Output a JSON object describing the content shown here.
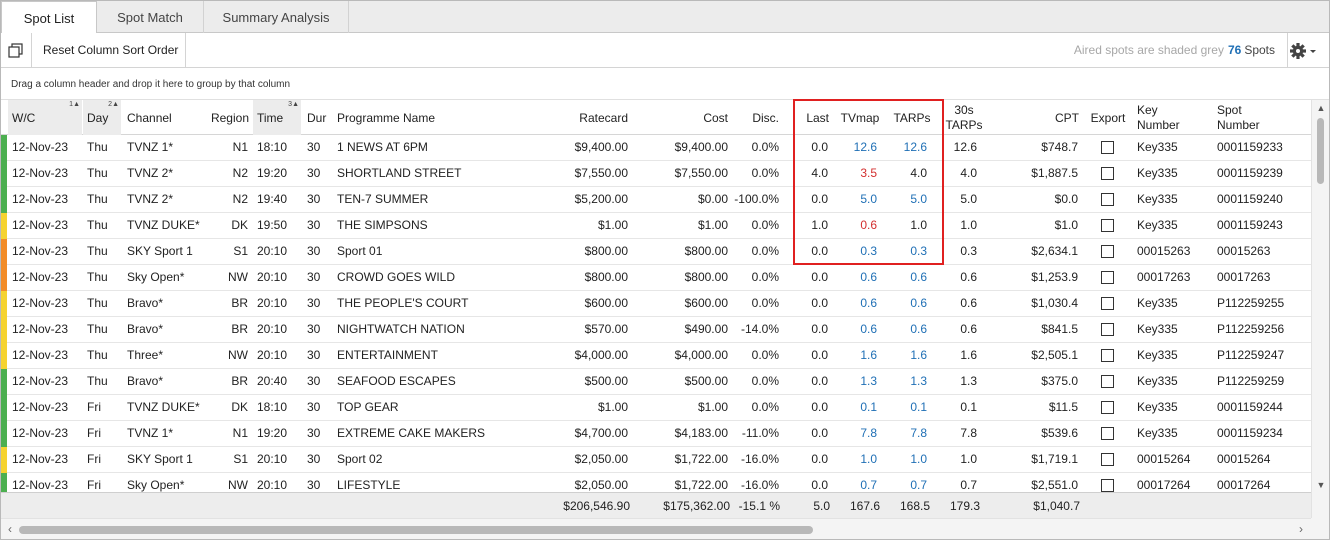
{
  "tabs": [
    {
      "label": "Spot List",
      "active": true
    },
    {
      "label": "Spot Match",
      "active": false
    },
    {
      "label": "Summary Analysis",
      "active": false
    }
  ],
  "toolbar": {
    "reset_label": "Reset Column Sort Order",
    "aired_note": "Aired spots are shaded grey",
    "spot_count": "76",
    "spots_label": "Spots"
  },
  "group_hint": "Drag a column header and drop it here to group by that column",
  "columns": {
    "wc": "W/C",
    "wc_sort": "1",
    "day": "Day",
    "day_sort": "2",
    "channel": "Channel",
    "region": "Region",
    "time": "Time",
    "time_sort": "3",
    "dur": "Dur",
    "programme": "Programme Name",
    "ratecard": "Ratecard",
    "cost": "Cost",
    "disc": "Disc.",
    "last": "Last",
    "tvmap": "TVmap",
    "tarps": "TARPs",
    "tarps30_l1": "30s",
    "tarps30_l2": "TARPs",
    "cpt": "CPT",
    "export": "Export",
    "key_l1": "Key",
    "key_l2": "Number",
    "spot_l1": "Spot",
    "spot_l2": "Number"
  },
  "status_colors": {
    "green": "#4caf50",
    "yellow": "#f5d330",
    "orange": "#f28c28"
  },
  "rows": [
    {
      "status": "green",
      "wc": "12-Nov-23",
      "day": "Thu",
      "channel": "TVNZ 1*",
      "region": "N1",
      "time": "18:10",
      "dur": "30",
      "programme": "1 NEWS AT 6PM",
      "ratecard": "$9,400.00",
      "cost": "$9,400.00",
      "disc": "0.0%",
      "last": "0.0",
      "tvmap": "12.6",
      "tvmap_color": "blue",
      "tarps": "12.6",
      "tarps_color": "blue",
      "tarps30": "12.6",
      "cpt": "$748.7",
      "key": "Key335",
      "spot": "0001159233"
    },
    {
      "status": "green",
      "wc": "12-Nov-23",
      "day": "Thu",
      "channel": "TVNZ 2*",
      "region": "N2",
      "time": "19:20",
      "dur": "30",
      "programme": "SHORTLAND STREET",
      "ratecard": "$7,550.00",
      "cost": "$7,550.00",
      "disc": "0.0%",
      "last": "4.0",
      "tvmap": "3.5",
      "tvmap_color": "red",
      "tarps": "4.0",
      "tarps_color": "plain",
      "tarps30": "4.0",
      "cpt": "$1,887.5",
      "key": "Key335",
      "spot": "0001159239"
    },
    {
      "status": "green",
      "wc": "12-Nov-23",
      "day": "Thu",
      "channel": "TVNZ 2*",
      "region": "N2",
      "time": "19:40",
      "dur": "30",
      "programme": "TEN-7 SUMMER",
      "ratecard": "$5,200.00",
      "cost": "$0.00",
      "disc": "-100.0%",
      "last": "0.0",
      "tvmap": "5.0",
      "tvmap_color": "blue",
      "tarps": "5.0",
      "tarps_color": "blue",
      "tarps30": "5.0",
      "cpt": "$0.0",
      "key": "Key335",
      "spot": "0001159240"
    },
    {
      "status": "yellow",
      "wc": "12-Nov-23",
      "day": "Thu",
      "channel": "TVNZ DUKE*",
      "region": "DK",
      "time": "19:50",
      "dur": "30",
      "programme": "THE SIMPSONS",
      "ratecard": "$1.00",
      "cost": "$1.00",
      "disc": "0.0%",
      "last": "1.0",
      "tvmap": "0.6",
      "tvmap_color": "red",
      "tarps": "1.0",
      "tarps_color": "plain",
      "tarps30": "1.0",
      "cpt": "$1.0",
      "key": "Key335",
      "spot": "0001159243"
    },
    {
      "status": "orange",
      "wc": "12-Nov-23",
      "day": "Thu",
      "channel": "SKY Sport 1",
      "region": "S1",
      "time": "20:10",
      "dur": "30",
      "programme": "Sport 01",
      "ratecard": "$800.00",
      "cost": "$800.00",
      "disc": "0.0%",
      "last": "0.0",
      "tvmap": "0.3",
      "tvmap_color": "blue",
      "tarps": "0.3",
      "tarps_color": "blue",
      "tarps30": "0.3",
      "cpt": "$2,634.1",
      "key": "00015263",
      "spot": "00015263"
    },
    {
      "status": "orange",
      "wc": "12-Nov-23",
      "day": "Thu",
      "channel": "Sky Open*",
      "region": "NW",
      "time": "20:10",
      "dur": "30",
      "programme": "CROWD GOES WILD",
      "ratecard": "$800.00",
      "cost": "$800.00",
      "disc": "0.0%",
      "last": "0.0",
      "tvmap": "0.6",
      "tvmap_color": "blue",
      "tarps": "0.6",
      "tarps_color": "blue",
      "tarps30": "0.6",
      "cpt": "$1,253.9",
      "key": "00017263",
      "spot": "00017263"
    },
    {
      "status": "yellow",
      "wc": "12-Nov-23",
      "day": "Thu",
      "channel": "Bravo*",
      "region": "BR",
      "time": "20:10",
      "dur": "30",
      "programme": "THE PEOPLE'S COURT",
      "ratecard": "$600.00",
      "cost": "$600.00",
      "disc": "0.0%",
      "last": "0.0",
      "tvmap": "0.6",
      "tvmap_color": "blue",
      "tarps": "0.6",
      "tarps_color": "blue",
      "tarps30": "0.6",
      "cpt": "$1,030.4",
      "key": "Key335",
      "spot": "P112259255"
    },
    {
      "status": "yellow",
      "wc": "12-Nov-23",
      "day": "Thu",
      "channel": "Bravo*",
      "region": "BR",
      "time": "20:10",
      "dur": "30",
      "programme": "NIGHTWATCH NATION",
      "ratecard": "$570.00",
      "cost": "$490.00",
      "disc": "-14.0%",
      "last": "0.0",
      "tvmap": "0.6",
      "tvmap_color": "blue",
      "tarps": "0.6",
      "tarps_color": "blue",
      "tarps30": "0.6",
      "cpt": "$841.5",
      "key": "Key335",
      "spot": "P112259256"
    },
    {
      "status": "yellow",
      "wc": "12-Nov-23",
      "day": "Thu",
      "channel": "Three*",
      "region": "NW",
      "time": "20:10",
      "dur": "30",
      "programme": "ENTERTAINMENT",
      "ratecard": "$4,000.00",
      "cost": "$4,000.00",
      "disc": "0.0%",
      "last": "0.0",
      "tvmap": "1.6",
      "tvmap_color": "blue",
      "tarps": "1.6",
      "tarps_color": "blue",
      "tarps30": "1.6",
      "cpt": "$2,505.1",
      "key": "Key335",
      "spot": "P112259247"
    },
    {
      "status": "green",
      "wc": "12-Nov-23",
      "day": "Thu",
      "channel": "Bravo*",
      "region": "BR",
      "time": "20:40",
      "dur": "30",
      "programme": "SEAFOOD ESCAPES",
      "ratecard": "$500.00",
      "cost": "$500.00",
      "disc": "0.0%",
      "last": "0.0",
      "tvmap": "1.3",
      "tvmap_color": "blue",
      "tarps": "1.3",
      "tarps_color": "blue",
      "tarps30": "1.3",
      "cpt": "$375.0",
      "key": "Key335",
      "spot": "P112259259"
    },
    {
      "status": "green",
      "wc": "12-Nov-23",
      "day": "Fri",
      "channel": "TVNZ DUKE*",
      "region": "DK",
      "time": "18:10",
      "dur": "30",
      "programme": "TOP GEAR",
      "ratecard": "$1.00",
      "cost": "$1.00",
      "disc": "0.0%",
      "last": "0.0",
      "tvmap": "0.1",
      "tvmap_color": "blue",
      "tarps": "0.1",
      "tarps_color": "blue",
      "tarps30": "0.1",
      "cpt": "$11.5",
      "key": "Key335",
      "spot": "0001159244"
    },
    {
      "status": "green",
      "wc": "12-Nov-23",
      "day": "Fri",
      "channel": "TVNZ 1*",
      "region": "N1",
      "time": "19:20",
      "dur": "30",
      "programme": "EXTREME CAKE MAKERS",
      "ratecard": "$4,700.00",
      "cost": "$4,183.00",
      "disc": "-11.0%",
      "last": "0.0",
      "tvmap": "7.8",
      "tvmap_color": "blue",
      "tarps": "7.8",
      "tarps_color": "blue",
      "tarps30": "7.8",
      "cpt": "$539.6",
      "key": "Key335",
      "spot": "0001159234"
    },
    {
      "status": "yellow",
      "wc": "12-Nov-23",
      "day": "Fri",
      "channel": "SKY Sport 1",
      "region": "S1",
      "time": "20:10",
      "dur": "30",
      "programme": "Sport 02",
      "ratecard": "$2,050.00",
      "cost": "$1,722.00",
      "disc": "-16.0%",
      "last": "0.0",
      "tvmap": "1.0",
      "tvmap_color": "blue",
      "tarps": "1.0",
      "tarps_color": "blue",
      "tarps30": "1.0",
      "cpt": "$1,719.1",
      "key": "00015264",
      "spot": "00015264"
    },
    {
      "status": "green",
      "wc": "12-Nov-23",
      "day": "Fri",
      "channel": "Sky Open*",
      "region": "NW",
      "time": "20:10",
      "dur": "30",
      "programme": "LIFESTYLE",
      "ratecard": "$2,050.00",
      "cost": "$1,722.00",
      "disc": "-16.0%",
      "last": "0.0",
      "tvmap": "0.7",
      "tvmap_color": "blue",
      "tarps": "0.7",
      "tarps_color": "blue",
      "tarps30": "0.7",
      "cpt": "$2,551.0",
      "key": "00017264",
      "spot": "00017264"
    }
  ],
  "totals": {
    "ratecard": "$206,546.90",
    "cost": "$175,362.00",
    "disc": "-15.1 %",
    "last": "5.0",
    "tvmap": "167.6",
    "tarps": "168.5",
    "tarps30": "179.3",
    "cpt": "$1,040.7"
  }
}
